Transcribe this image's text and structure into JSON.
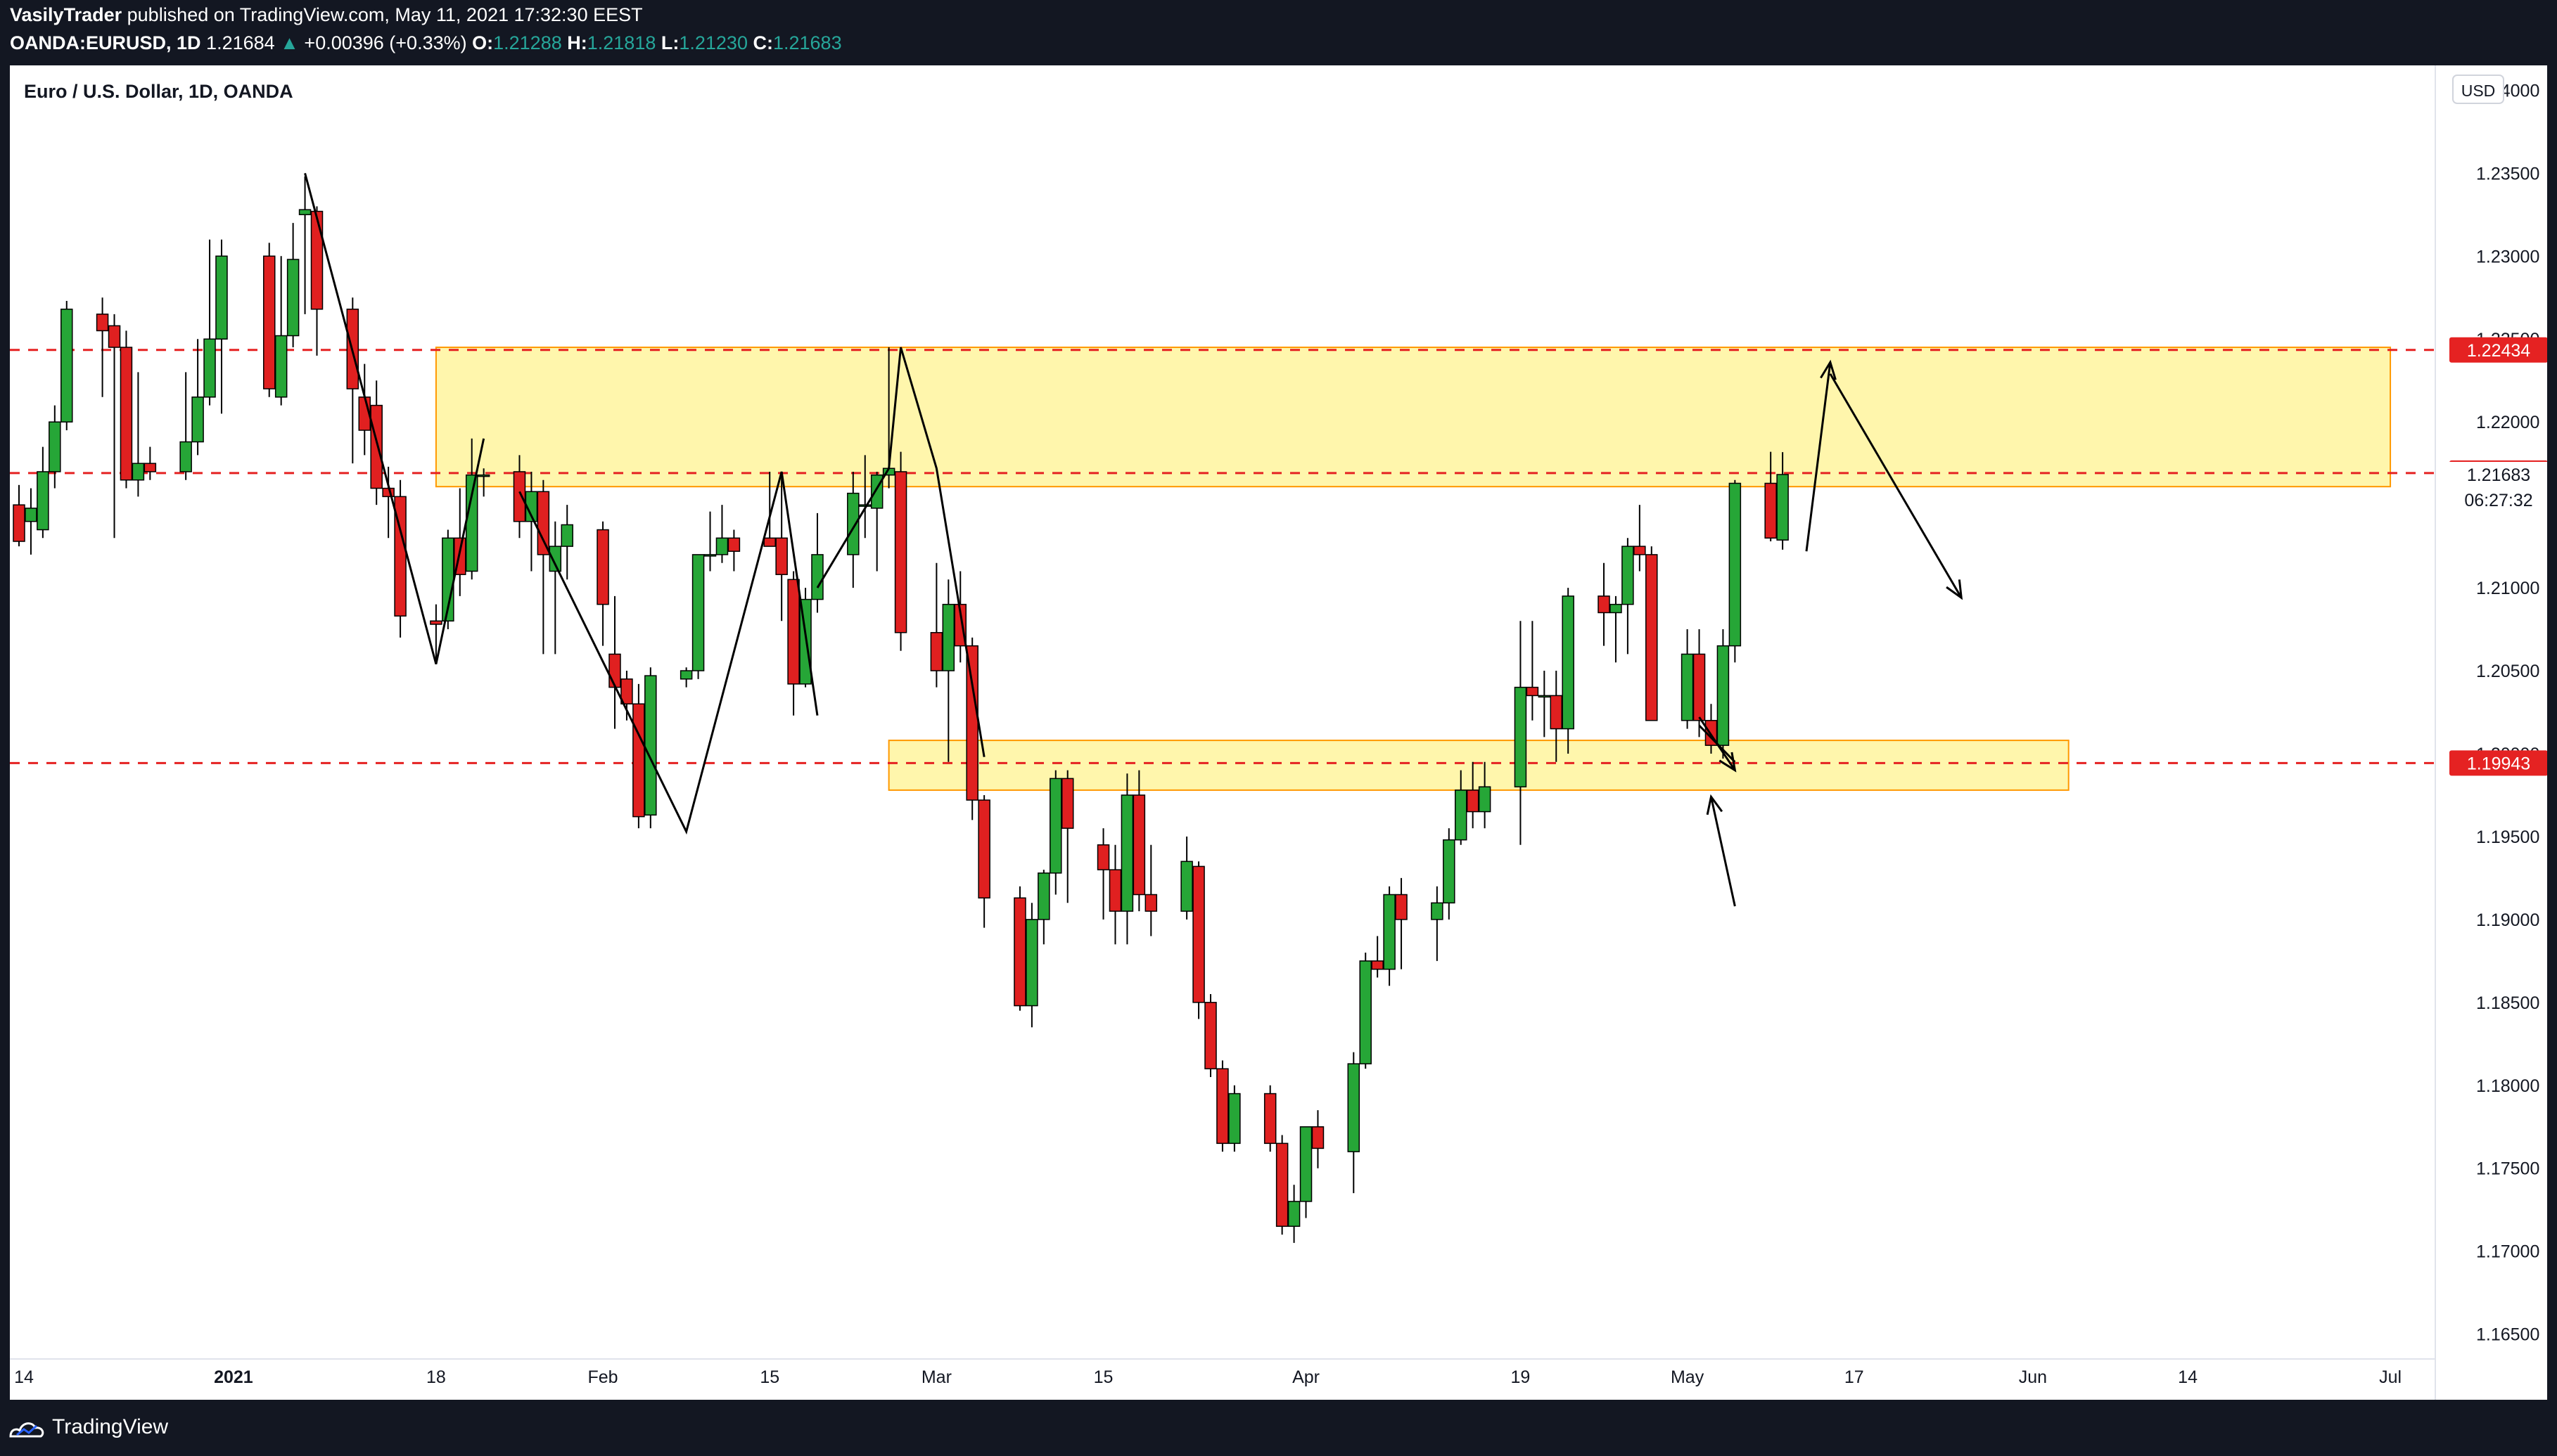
{
  "header": {
    "author": "VasilyTrader",
    "published_text": "published on TradingView.com, May 11, 2021 17:32:30 EEST",
    "symbol": "OANDA:EURUSD, 1D",
    "last": "1.21684",
    "change_arrow": "▲",
    "change": "+0.00396 (+0.33%)",
    "o_label": "O:",
    "o_value": "1.21288",
    "h_label": "H:",
    "h_value": "1.21818",
    "l_label": "L:",
    "l_value": "1.21230",
    "c_label": "C:",
    "c_value": "1.21683"
  },
  "footer": {
    "brand": "TradingView"
  },
  "colors": {
    "up": "#26a637",
    "down": "#e02020",
    "zone_fill": "#fff59d",
    "zone_border": "#ff9800",
    "level_line": "#e52222",
    "background": "#ffffff",
    "frame": "#131722"
  },
  "chart_data": {
    "type": "candlestick",
    "title": "Euro / U.S. Dollar, 1D, OANDA",
    "currency": "USD",
    "x_ticks": [
      {
        "label": "14",
        "date": "2020-12-14"
      },
      {
        "label": "2021",
        "date": "2021-01-01"
      },
      {
        "label": "18",
        "date": "2021-01-18"
      },
      {
        "label": "Feb",
        "date": "2021-02-01"
      },
      {
        "label": "15",
        "date": "2021-02-15"
      },
      {
        "label": "Mar",
        "date": "2021-03-01"
      },
      {
        "label": "15",
        "date": "2021-03-15"
      },
      {
        "label": "Apr",
        "date": "2021-04-01"
      },
      {
        "label": "19",
        "date": "2021-04-19"
      },
      {
        "label": "May",
        "date": "2021-05-03"
      },
      {
        "label": "17",
        "date": "2021-05-17"
      },
      {
        "label": "Jun",
        "date": "2021-06-01"
      },
      {
        "label": "14",
        "date": "2021-06-14"
      },
      {
        "label": "Jul",
        "date": "2021-07-01"
      }
    ],
    "y_ticks": [
      "1.24000",
      "1.23500",
      "1.23000",
      "1.22500",
      "1.22000",
      "1.21500",
      "1.21000",
      "1.20500",
      "1.20000",
      "1.19500",
      "1.19000",
      "1.18500",
      "1.18000",
      "1.17500",
      "1.17000",
      "1.16500"
    ],
    "ylim": [
      1.1635,
      1.2415
    ],
    "grid": false,
    "price_labels": [
      {
        "text": "1.22434",
        "value": 1.22434,
        "style": "red"
      },
      {
        "text": "1.21692",
        "value": 1.21692,
        "style": "red"
      },
      {
        "text": "1.21683",
        "value": 1.21683,
        "style": "plain"
      },
      {
        "text": "06:27:32",
        "value": 1.2153,
        "style": "plain"
      },
      {
        "text": "1.19943",
        "value": 1.19943,
        "style": "red"
      }
    ],
    "horizontal_levels": [
      1.22434,
      1.21692,
      1.19943
    ],
    "zones": [
      {
        "from_date": "2021-01-18",
        "to_date": "2021-07-01",
        "low": 1.2161,
        "high": 1.2245
      },
      {
        "from_date": "2021-02-25",
        "to_date": "2021-06-04",
        "low": 1.1978,
        "high": 1.2008
      }
    ],
    "candles": [
      {
        "date": "2020-12-14",
        "o": 1.215,
        "h": 1.2162,
        "l": 1.2125,
        "c": 1.2128
      },
      {
        "date": "2020-12-15",
        "o": 1.214,
        "h": 1.216,
        "l": 1.212,
        "c": 1.2148
      },
      {
        "date": "2020-12-16",
        "o": 1.2135,
        "h": 1.2185,
        "l": 1.213,
        "c": 1.217
      },
      {
        "date": "2020-12-17",
        "o": 1.217,
        "h": 1.221,
        "l": 1.216,
        "c": 1.22
      },
      {
        "date": "2020-12-18",
        "o": 1.22,
        "h": 1.2273,
        "l": 1.2195,
        "c": 1.2268
      },
      {
        "date": "2020-12-21",
        "o": 1.2265,
        "h": 1.2275,
        "l": 1.2215,
        "c": 1.2255
      },
      {
        "date": "2020-12-22",
        "o": 1.2258,
        "h": 1.2265,
        "l": 1.213,
        "c": 1.2245
      },
      {
        "date": "2020-12-23",
        "o": 1.2245,
        "h": 1.2255,
        "l": 1.216,
        "c": 1.2165
      },
      {
        "date": "2020-12-24",
        "o": 1.2165,
        "h": 1.223,
        "l": 1.2155,
        "c": 1.2175
      },
      {
        "date": "2020-12-25",
        "o": 1.2175,
        "h": 1.2185,
        "l": 1.2165,
        "c": 1.217
      },
      {
        "date": "2020-12-28",
        "o": 1.217,
        "h": 1.223,
        "l": 1.2165,
        "c": 1.2188
      },
      {
        "date": "2020-12-29",
        "o": 1.2188,
        "h": 1.225,
        "l": 1.218,
        "c": 1.2215
      },
      {
        "date": "2020-12-30",
        "o": 1.2215,
        "h": 1.231,
        "l": 1.221,
        "c": 1.225
      },
      {
        "date": "2020-12-31",
        "o": 1.225,
        "h": 1.231,
        "l": 1.2205,
        "c": 1.23
      },
      {
        "date": "2021-01-04",
        "o": 1.23,
        "h": 1.2308,
        "l": 1.2215,
        "c": 1.222
      },
      {
        "date": "2021-01-05",
        "o": 1.2215,
        "h": 1.23,
        "l": 1.221,
        "c": 1.2252
      },
      {
        "date": "2021-01-06",
        "o": 1.2252,
        "h": 1.232,
        "l": 1.2245,
        "c": 1.2298
      },
      {
        "date": "2021-01-07",
        "o": 1.2325,
        "h": 1.2348,
        "l": 1.2265,
        "c": 1.2328
      },
      {
        "date": "2021-01-08",
        "o": 1.2327,
        "h": 1.233,
        "l": 1.224,
        "c": 1.2268
      },
      {
        "date": "2021-01-11",
        "o": 1.2268,
        "h": 1.2275,
        "l": 1.2175,
        "c": 1.222
      },
      {
        "date": "2021-01-12",
        "o": 1.2215,
        "h": 1.2235,
        "l": 1.218,
        "c": 1.2195
      },
      {
        "date": "2021-01-13",
        "o": 1.221,
        "h": 1.2225,
        "l": 1.215,
        "c": 1.216
      },
      {
        "date": "2021-01-14",
        "o": 1.216,
        "h": 1.2173,
        "l": 1.213,
        "c": 1.2155
      },
      {
        "date": "2021-01-15",
        "o": 1.2155,
        "h": 1.2165,
        "l": 1.207,
        "c": 1.2083
      },
      {
        "date": "2021-01-18",
        "o": 1.208,
        "h": 1.209,
        "l": 1.2055,
        "c": 1.2078
      },
      {
        "date": "2021-01-19",
        "o": 1.208,
        "h": 1.2135,
        "l": 1.2075,
        "c": 1.213
      },
      {
        "date": "2021-01-20",
        "o": 1.213,
        "h": 1.216,
        "l": 1.2095,
        "c": 1.2108
      },
      {
        "date": "2021-01-21",
        "o": 1.211,
        "h": 1.219,
        "l": 1.2105,
        "c": 1.2168
      },
      {
        "date": "2021-01-22",
        "o": 1.2168,
        "h": 1.2172,
        "l": 1.2155,
        "c": 1.2168
      },
      {
        "date": "2021-01-25",
        "o": 1.217,
        "h": 1.218,
        "l": 1.213,
        "c": 1.214
      },
      {
        "date": "2021-01-26",
        "o": 1.214,
        "h": 1.217,
        "l": 1.211,
        "c": 1.2158
      },
      {
        "date": "2021-01-27",
        "o": 1.2158,
        "h": 1.2165,
        "l": 1.206,
        "c": 1.212
      },
      {
        "date": "2021-01-28",
        "o": 1.211,
        "h": 1.214,
        "l": 1.206,
        "c": 1.2125
      },
      {
        "date": "2021-01-29",
        "o": 1.2125,
        "h": 1.215,
        "l": 1.2105,
        "c": 1.2138
      },
      {
        "date": "2021-02-01",
        "o": 1.2135,
        "h": 1.214,
        "l": 1.2065,
        "c": 1.209
      },
      {
        "date": "2021-02-02",
        "o": 1.206,
        "h": 1.2095,
        "l": 1.2015,
        "c": 1.204
      },
      {
        "date": "2021-02-03",
        "o": 1.2045,
        "h": 1.205,
        "l": 1.202,
        "c": 1.203
      },
      {
        "date": "2021-02-04",
        "o": 1.203,
        "h": 1.2042,
        "l": 1.1955,
        "c": 1.1962
      },
      {
        "date": "2021-02-05",
        "o": 1.1963,
        "h": 1.2052,
        "l": 1.1955,
        "c": 1.2047
      },
      {
        "date": "2021-02-08",
        "o": 1.2045,
        "h": 1.2052,
        "l": 1.204,
        "c": 1.205
      },
      {
        "date": "2021-02-09",
        "o": 1.205,
        "h": 1.212,
        "l": 1.2045,
        "c": 1.212
      },
      {
        "date": "2021-02-10",
        "o": 1.212,
        "h": 1.2146,
        "l": 1.211,
        "c": 1.212
      },
      {
        "date": "2021-02-11",
        "o": 1.212,
        "h": 1.215,
        "l": 1.2115,
        "c": 1.213
      },
      {
        "date": "2021-02-12",
        "o": 1.213,
        "h": 1.2135,
        "l": 1.211,
        "c": 1.2122
      },
      {
        "date": "2021-02-15",
        "o": 1.213,
        "h": 1.217,
        "l": 1.2125,
        "c": 1.2125
      },
      {
        "date": "2021-02-16",
        "o": 1.213,
        "h": 1.2169,
        "l": 1.208,
        "c": 1.2108
      },
      {
        "date": "2021-02-17",
        "o": 1.2105,
        "h": 1.211,
        "l": 1.2023,
        "c": 1.2042
      },
      {
        "date": "2021-02-18",
        "o": 1.2042,
        "h": 1.21,
        "l": 1.204,
        "c": 1.2093
      },
      {
        "date": "2021-02-19",
        "o": 1.2093,
        "h": 1.2145,
        "l": 1.2085,
        "c": 1.212
      },
      {
        "date": "2021-02-22",
        "o": 1.212,
        "h": 1.217,
        "l": 1.21,
        "c": 1.2157
      },
      {
        "date": "2021-02-23",
        "o": 1.215,
        "h": 1.218,
        "l": 1.213,
        "c": 1.215
      },
      {
        "date": "2021-02-24",
        "o": 1.2148,
        "h": 1.217,
        "l": 1.211,
        "c": 1.2168
      },
      {
        "date": "2021-02-25",
        "o": 1.2168,
        "h": 1.2245,
        "l": 1.216,
        "c": 1.2172
      },
      {
        "date": "2021-02-26",
        "o": 1.217,
        "h": 1.2182,
        "l": 1.2062,
        "c": 1.2073
      },
      {
        "date": "2021-03-01",
        "o": 1.2073,
        "h": 1.2115,
        "l": 1.204,
        "c": 1.205
      },
      {
        "date": "2021-03-02",
        "o": 1.205,
        "h": 1.2105,
        "l": 1.1995,
        "c": 1.209
      },
      {
        "date": "2021-03-03",
        "o": 1.209,
        "h": 1.211,
        "l": 1.2055,
        "c": 1.2065
      },
      {
        "date": "2021-03-04",
        "o": 1.2065,
        "h": 1.207,
        "l": 1.196,
        "c": 1.1972
      },
      {
        "date": "2021-03-05",
        "o": 1.1972,
        "h": 1.1975,
        "l": 1.1895,
        "c": 1.1913
      },
      {
        "date": "2021-03-08",
        "o": 1.1913,
        "h": 1.192,
        "l": 1.1845,
        "c": 1.1848
      },
      {
        "date": "2021-03-09",
        "o": 1.1848,
        "h": 1.191,
        "l": 1.1835,
        "c": 1.19
      },
      {
        "date": "2021-03-10",
        "o": 1.19,
        "h": 1.193,
        "l": 1.1885,
        "c": 1.1928
      },
      {
        "date": "2021-03-11",
        "o": 1.1928,
        "h": 1.199,
        "l": 1.1915,
        "c": 1.1985
      },
      {
        "date": "2021-03-12",
        "o": 1.1985,
        "h": 1.199,
        "l": 1.191,
        "c": 1.1955
      },
      {
        "date": "2021-03-15",
        "o": 1.1945,
        "h": 1.1955,
        "l": 1.19,
        "c": 1.193
      },
      {
        "date": "2021-03-16",
        "o": 1.193,
        "h": 1.1945,
        "l": 1.1885,
        "c": 1.1905
      },
      {
        "date": "2021-03-17",
        "o": 1.1905,
        "h": 1.1988,
        "l": 1.1885,
        "c": 1.1975
      },
      {
        "date": "2021-03-18",
        "o": 1.1975,
        "h": 1.199,
        "l": 1.1905,
        "c": 1.1915
      },
      {
        "date": "2021-03-19",
        "o": 1.1915,
        "h": 1.1945,
        "l": 1.189,
        "c": 1.1905
      },
      {
        "date": "2021-03-22",
        "o": 1.1905,
        "h": 1.195,
        "l": 1.19,
        "c": 1.1935
      },
      {
        "date": "2021-03-23",
        "o": 1.1932,
        "h": 1.1935,
        "l": 1.184,
        "c": 1.185
      },
      {
        "date": "2021-03-24",
        "o": 1.185,
        "h": 1.1855,
        "l": 1.1805,
        "c": 1.181
      },
      {
        "date": "2021-03-25",
        "o": 1.181,
        "h": 1.1815,
        "l": 1.176,
        "c": 1.1765
      },
      {
        "date": "2021-03-26",
        "o": 1.1765,
        "h": 1.18,
        "l": 1.176,
        "c": 1.1795
      },
      {
        "date": "2021-03-29",
        "o": 1.1795,
        "h": 1.18,
        "l": 1.176,
        "c": 1.1765
      },
      {
        "date": "2021-03-30",
        "o": 1.1765,
        "h": 1.177,
        "l": 1.171,
        "c": 1.1715
      },
      {
        "date": "2021-03-31",
        "o": 1.1715,
        "h": 1.174,
        "l": 1.1705,
        "c": 1.173
      },
      {
        "date": "2021-04-01",
        "o": 1.173,
        "h": 1.1775,
        "l": 1.172,
        "c": 1.1775
      },
      {
        "date": "2021-04-02",
        "o": 1.1775,
        "h": 1.1785,
        "l": 1.175,
        "c": 1.1762
      },
      {
        "date": "2021-04-05",
        "o": 1.176,
        "h": 1.182,
        "l": 1.1735,
        "c": 1.1813
      },
      {
        "date": "2021-04-06",
        "o": 1.1813,
        "h": 1.188,
        "l": 1.181,
        "c": 1.1875
      },
      {
        "date": "2021-04-07",
        "o": 1.1875,
        "h": 1.189,
        "l": 1.1865,
        "c": 1.187
      },
      {
        "date": "2021-04-08",
        "o": 1.187,
        "h": 1.192,
        "l": 1.186,
        "c": 1.1915
      },
      {
        "date": "2021-04-09",
        "o": 1.1915,
        "h": 1.1925,
        "l": 1.187,
        "c": 1.19
      },
      {
        "date": "2021-04-12",
        "o": 1.19,
        "h": 1.192,
        "l": 1.1875,
        "c": 1.191
      },
      {
        "date": "2021-04-13",
        "o": 1.191,
        "h": 1.1955,
        "l": 1.19,
        "c": 1.1948
      },
      {
        "date": "2021-04-14",
        "o": 1.1948,
        "h": 1.199,
        "l": 1.1945,
        "c": 1.1978
      },
      {
        "date": "2021-04-15",
        "o": 1.1978,
        "h": 1.1995,
        "l": 1.1955,
        "c": 1.1965
      },
      {
        "date": "2021-04-16",
        "o": 1.1965,
        "h": 1.1995,
        "l": 1.1955,
        "c": 1.198
      },
      {
        "date": "2021-04-19",
        "o": 1.198,
        "h": 1.208,
        "l": 1.1945,
        "c": 1.204
      },
      {
        "date": "2021-04-20",
        "o": 1.204,
        "h": 1.208,
        "l": 1.202,
        "c": 1.2035
      },
      {
        "date": "2021-04-21",
        "o": 1.2035,
        "h": 1.205,
        "l": 1.201,
        "c": 1.2035
      },
      {
        "date": "2021-04-22",
        "o": 1.2035,
        "h": 1.205,
        "l": 1.1995,
        "c": 1.2015
      },
      {
        "date": "2021-04-23",
        "o": 1.2015,
        "h": 1.21,
        "l": 1.2,
        "c": 1.2095
      },
      {
        "date": "2021-04-26",
        "o": 1.2095,
        "h": 1.2115,
        "l": 1.2065,
        "c": 1.2085
      },
      {
        "date": "2021-04-27",
        "o": 1.2085,
        "h": 1.2095,
        "l": 1.2055,
        "c": 1.209
      },
      {
        "date": "2021-04-28",
        "o": 1.209,
        "h": 1.213,
        "l": 1.206,
        "c": 1.2125
      },
      {
        "date": "2021-04-29",
        "o": 1.2125,
        "h": 1.215,
        "l": 1.211,
        "c": 1.212
      },
      {
        "date": "2021-04-30",
        "o": 1.212,
        "h": 1.2125,
        "l": 1.202,
        "c": 1.202
      },
      {
        "date": "2021-05-03",
        "o": 1.202,
        "h": 1.2075,
        "l": 1.2015,
        "c": 1.206
      },
      {
        "date": "2021-05-04",
        "o": 1.206,
        "h": 1.2075,
        "l": 1.201,
        "c": 1.202
      },
      {
        "date": "2021-05-05",
        "o": 1.202,
        "h": 1.203,
        "l": 1.2,
        "c": 1.2005
      },
      {
        "date": "2021-05-06",
        "o": 1.2005,
        "h": 1.2075,
        "l": 1.1997,
        "c": 1.2065
      },
      {
        "date": "2021-05-07",
        "o": 1.2065,
        "h": 1.2165,
        "l": 1.2055,
        "c": 1.2163
      },
      {
        "date": "2021-05-10",
        "o": 1.2163,
        "h": 1.2182,
        "l": 1.2128,
        "c": 1.213
      },
      {
        "date": "2021-05-11",
        "o": 1.21288,
        "h": 1.21818,
        "l": 1.2123,
        "c": 1.21683
      }
    ],
    "drawings": {
      "swing_lines": [
        {
          "color": "#000000",
          "points": [
            [
              "2021-01-07",
              1.235
            ],
            [
              "2021-01-18",
              1.2054
            ],
            [
              "2021-01-22",
              1.219
            ]
          ]
        },
        {
          "color": "#000000",
          "points": [
            [
              "2021-01-25",
              1.2158
            ],
            [
              "2021-02-08",
              1.1953
            ],
            [
              "2021-02-16",
              1.217
            ],
            [
              "2021-02-19",
              1.2023
            ]
          ]
        },
        {
          "color": "#000000",
          "points": [
            [
              "2021-02-19",
              1.21
            ],
            [
              "2021-02-25",
              1.2172
            ],
            [
              "2021-02-26",
              1.2245
            ],
            [
              "2021-03-01",
              1.2172
            ],
            [
              "2021-03-05",
              1.1998
            ]
          ]
        },
        {
          "color": "#000000",
          "points": [
            [
              "2021-05-04",
              1.2017
            ],
            [
              "2021-05-07",
              1.1995
            ]
          ]
        }
      ],
      "arrows": [
        {
          "from": [
            "2021-05-13",
            1.2122
          ],
          "to": [
            "2021-05-15",
            1.2236
          ],
          "via": [
            "2021-05-14",
            1.2229
          ]
        },
        {
          "from": [
            "2021-05-15",
            1.2229
          ],
          "to": [
            "2021-05-26",
            1.2094
          ]
        },
        {
          "from": [
            "2021-05-07",
            1.1908
          ],
          "to": [
            "2021-05-05",
            1.1974
          ]
        },
        {
          "from": [
            "2021-05-04",
            1.2022
          ],
          "to": [
            "2021-05-07",
            1.199
          ]
        }
      ]
    }
  }
}
